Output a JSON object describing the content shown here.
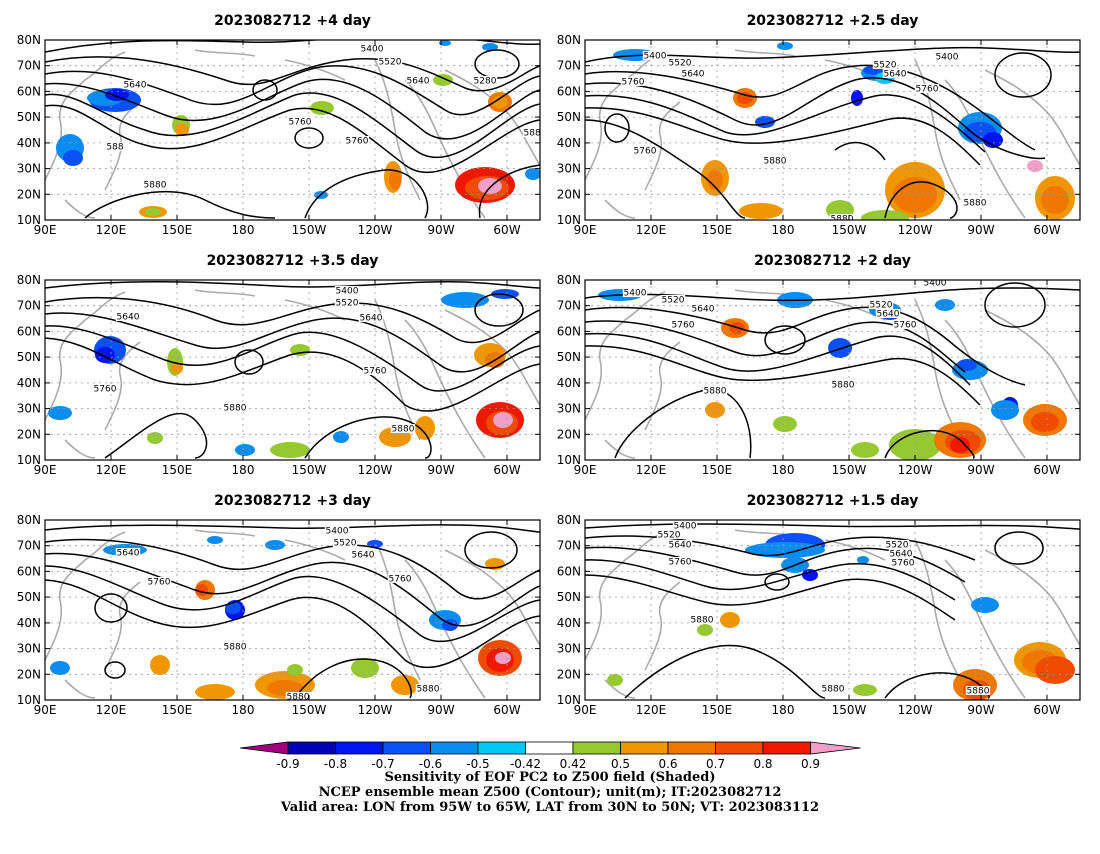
{
  "panels": [
    {
      "title": "2023082712  +4 day",
      "contour_labels": [
        "5400",
        "5520",
        "5640",
        "5640",
        "5280",
        "5880",
        "5760",
        "5760",
        "588",
        "5880"
      ]
    },
    {
      "title": "2023082712  +2.5 day",
      "contour_labels": [
        "5400",
        "5520",
        "5640",
        "5760",
        "5400",
        "5520",
        "5640",
        "5760",
        "5880",
        "5760",
        "5880",
        "5880"
      ]
    },
    {
      "title": "2023082712  +3.5 day",
      "contour_labels": [
        "5400",
        "5520",
        "5640",
        "5640",
        "5760",
        "5760",
        "5880",
        "5880"
      ]
    },
    {
      "title": "2023082712  +2 day",
      "contour_labels": [
        "5400",
        "5520",
        "5640",
        "5760",
        "5400",
        "5520",
        "5640",
        "5760",
        "5880",
        "5880"
      ]
    },
    {
      "title": "2023082712  +3 day",
      "contour_labels": [
        "5400",
        "5520",
        "5640",
        "5640",
        "5760",
        "5760",
        "5880",
        "5880",
        "5880"
      ]
    },
    {
      "title": "2023082712  +1.5 day",
      "contour_labels": [
        "5400",
        "5520",
        "5640",
        "5760",
        "5520",
        "5640",
        "5760",
        "5880",
        "5880",
        "5880"
      ]
    }
  ],
  "axes": {
    "lat_labels": [
      "80N",
      "70N",
      "60N",
      "50N",
      "40N",
      "30N",
      "20N",
      "10N"
    ],
    "lon_labels": [
      "90E",
      "120E",
      "150E",
      "180",
      "150W",
      "120W",
      "90W",
      "60W"
    ]
  },
  "colorbar": {
    "labels": [
      "-0.9",
      "-0.8",
      "-0.7",
      "-0.6",
      "-0.5",
      "-0.42",
      "0.42",
      "0.5",
      "0.6",
      "0.7",
      "0.8",
      "0.9"
    ],
    "colors": [
      "#a0007f",
      "#0000b4",
      "#0014f0",
      "#0a50f5",
      "#0a8cf0",
      "#00c8f5",
      "#ffffff",
      "#96c832",
      "#f09600",
      "#f07800",
      "#f04b00",
      "#f01900",
      "#f0a0c8"
    ]
  },
  "footer": {
    "line1": "Sensitivity of EOF PC2 to Z500 field (Shaded)",
    "line2": "NCEP ensemble mean Z500 (Contour); unit(m); IT:2023082712",
    "line3": "Valid area: LON from 95W to 65W, LAT from 30N to 50N; VT: 2023083112"
  }
}
